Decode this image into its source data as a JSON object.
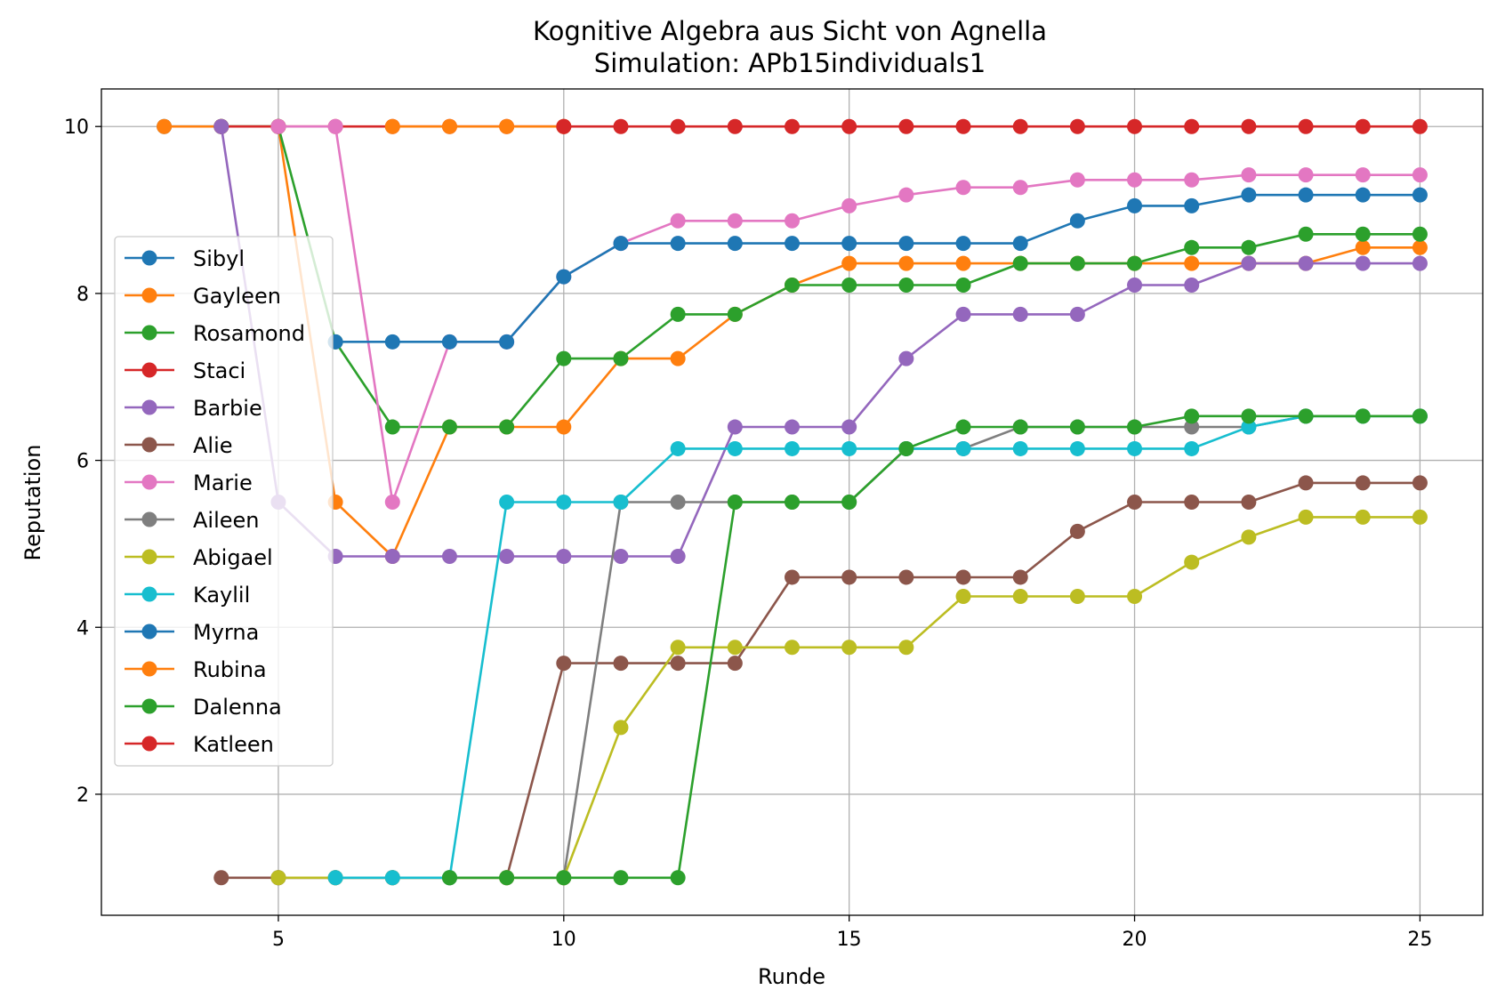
{
  "chart_data": {
    "type": "line",
    "title": "Kognitive Algebra aus Sicht von Agnella",
    "subtitle": "Simulation: APb15individuals1",
    "xlabel": "Runde",
    "ylabel": "Reputation",
    "xlim": [
      1.9,
      26.1
    ],
    "ylim": [
      0.55,
      10.45
    ],
    "xticks": [
      5,
      10,
      15,
      20,
      25
    ],
    "yticks": [
      2,
      4,
      6,
      8,
      10
    ],
    "grid": true,
    "legend_position": "center-left",
    "markers": "circle",
    "series": [
      {
        "name": "Sibyl",
        "color": "#1f77b4",
        "x": [
          3,
          4,
          5
        ],
        "y": [
          10,
          10,
          10
        ]
      },
      {
        "name": "Gayleen",
        "color": "#ff7f0e",
        "x": [
          3,
          4,
          5,
          6,
          7,
          8,
          9,
          10,
          11,
          12,
          13,
          14,
          15,
          16,
          17,
          18,
          19,
          20,
          21,
          22,
          23,
          24,
          25
        ],
        "y": [
          10,
          10,
          10,
          5.5,
          4.85,
          6.4,
          6.4,
          6.4,
          7.22,
          7.22,
          7.75,
          8.1,
          8.36,
          8.36,
          8.36,
          8.36,
          8.36,
          8.36,
          8.36,
          8.36,
          8.36,
          8.55,
          8.55
        ]
      },
      {
        "name": "Rosamond",
        "color": "#2ca02c",
        "x": [
          4,
          5,
          6,
          7,
          8,
          9,
          10,
          11,
          12,
          13,
          14,
          15,
          16,
          17,
          18,
          19,
          20,
          21,
          22,
          23,
          24,
          25
        ],
        "y": [
          10,
          10,
          7.42,
          6.4,
          6.4,
          6.4,
          7.22,
          7.22,
          7.75,
          7.75,
          8.1,
          8.1,
          8.1,
          8.1,
          8.36,
          8.36,
          8.36,
          8.55,
          8.55,
          8.71,
          8.71,
          8.71
        ]
      },
      {
        "name": "Staci",
        "color": "#d62728",
        "x": [
          4,
          5,
          6,
          7,
          8,
          9,
          10
        ],
        "y": [
          10,
          10,
          10,
          10,
          10,
          10,
          10
        ]
      },
      {
        "name": "Barbie",
        "color": "#9467bd",
        "x": [
          4,
          5,
          6,
          7,
          8,
          9,
          10,
          11,
          12,
          13,
          14,
          15,
          16,
          17,
          18,
          19,
          20,
          21,
          22,
          23,
          24,
          25
        ],
        "y": [
          10,
          5.5,
          4.85,
          4.85,
          4.85,
          4.85,
          4.85,
          4.85,
          4.85,
          6.4,
          6.4,
          6.4,
          7.22,
          7.75,
          7.75,
          7.75,
          8.1,
          8.1,
          8.36,
          8.36,
          8.36,
          8.36
        ]
      },
      {
        "name": "Alie",
        "color": "#8c564b",
        "x": [
          4,
          5,
          6,
          7,
          8,
          9,
          10,
          11,
          12,
          13,
          14,
          15,
          16,
          17,
          18,
          19,
          20,
          21,
          22,
          23,
          24,
          25
        ],
        "y": [
          1,
          1,
          1,
          1,
          1,
          1,
          3.57,
          3.57,
          3.57,
          3.57,
          4.6,
          4.6,
          4.6,
          4.6,
          4.6,
          5.15,
          5.5,
          5.5,
          5.5,
          5.73,
          5.73,
          5.73
        ]
      },
      {
        "name": "Marie",
        "color": "#e377c2",
        "x": [
          5,
          6,
          7,
          8,
          9,
          10,
          11,
          12,
          13,
          14,
          15,
          16,
          17,
          18,
          19,
          20,
          21,
          22,
          23,
          24,
          25
        ],
        "y": [
          10,
          10,
          5.5,
          7.42,
          7.42,
          8.2,
          8.6,
          8.87,
          8.87,
          8.87,
          9.05,
          9.18,
          9.27,
          9.27,
          9.36,
          9.36,
          9.36,
          9.42,
          9.42,
          9.42,
          9.42
        ]
      },
      {
        "name": "Aileen",
        "color": "#7f7f7f",
        "x": [
          5,
          6,
          7,
          8,
          9,
          10,
          11,
          12,
          13,
          14,
          15,
          16,
          17,
          18,
          19,
          20,
          21,
          22,
          23,
          24,
          25
        ],
        "y": [
          1,
          1,
          1,
          1,
          1,
          1,
          5.5,
          5.5,
          5.5,
          5.5,
          5.5,
          6.14,
          6.14,
          6.4,
          6.4,
          6.4,
          6.4,
          6.4,
          6.53,
          6.53,
          6.53
        ]
      },
      {
        "name": "Abigael",
        "color": "#bcbd22",
        "x": [
          5,
          6,
          7,
          8,
          9,
          10,
          11,
          12,
          13,
          14,
          15,
          16,
          17,
          18,
          19,
          20,
          21,
          22,
          23,
          24,
          25
        ],
        "y": [
          1,
          1,
          1,
          1,
          1,
          1,
          2.8,
          3.76,
          3.76,
          3.76,
          3.76,
          3.76,
          4.37,
          4.37,
          4.37,
          4.37,
          4.78,
          5.08,
          5.32,
          5.32,
          5.32
        ]
      },
      {
        "name": "Kaylil",
        "color": "#17becf",
        "x": [
          6,
          7,
          8,
          9,
          10,
          11,
          12,
          13,
          14,
          15,
          16,
          17,
          18,
          19,
          20,
          21,
          22,
          23,
          24,
          25
        ],
        "y": [
          1,
          1,
          1,
          5.5,
          5.5,
          5.5,
          6.14,
          6.14,
          6.14,
          6.14,
          6.14,
          6.14,
          6.14,
          6.14,
          6.14,
          6.14,
          6.4,
          6.53,
          6.53,
          6.53
        ]
      },
      {
        "name": "Myrna",
        "color": "#1f77b4",
        "x": [
          6,
          7,
          8,
          9,
          10,
          11,
          12,
          13,
          14,
          15,
          16,
          17,
          18,
          19,
          20,
          21,
          22,
          23,
          24,
          25
        ],
        "y": [
          7.42,
          7.42,
          7.42,
          7.42,
          8.2,
          8.6,
          8.6,
          8.6,
          8.6,
          8.6,
          8.6,
          8.6,
          8.6,
          8.87,
          9.05,
          9.05,
          9.18,
          9.18,
          9.18,
          9.18
        ]
      },
      {
        "name": "Rubina",
        "color": "#ff7f0e",
        "x": [
          7,
          8,
          9,
          10
        ],
        "y": [
          10,
          10,
          10,
          10
        ]
      },
      {
        "name": "Dalenna",
        "color": "#2ca02c",
        "x": [
          8,
          9,
          10,
          11,
          12,
          13,
          14,
          15,
          16,
          17,
          18,
          19,
          20,
          21,
          22,
          23,
          24,
          25
        ],
        "y": [
          1,
          1,
          1,
          1,
          1,
          5.5,
          5.5,
          5.5,
          6.14,
          6.4,
          6.4,
          6.4,
          6.4,
          6.53,
          6.53,
          6.53,
          6.53,
          6.53
        ]
      },
      {
        "name": "Katleen",
        "color": "#d62728",
        "x": [
          10,
          11,
          12,
          13,
          14,
          15,
          16,
          17,
          18,
          19,
          20,
          21,
          22,
          23,
          24,
          25
        ],
        "y": [
          10,
          10,
          10,
          10,
          10,
          10,
          10,
          10,
          10,
          10,
          10,
          10,
          10,
          10,
          10,
          10
        ]
      }
    ]
  }
}
